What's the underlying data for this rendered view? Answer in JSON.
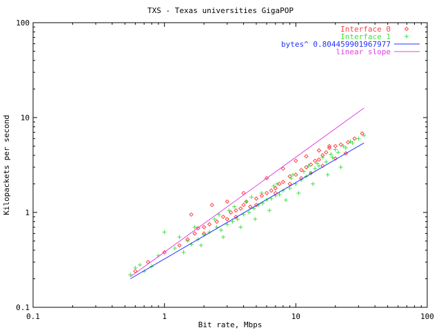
{
  "chart_data": {
    "type": "scatter",
    "title": "TXS - Texas universities GigaPOP",
    "xlabel": "Bit rate, Mbps",
    "ylabel": "Kilopackets per second",
    "x_scale": "log",
    "y_scale": "log",
    "xlim": [
      0.1,
      100
    ],
    "ylim": [
      0.1,
      100
    ],
    "x_ticks": [
      0.1,
      1,
      10,
      100
    ],
    "y_ticks": [
      0.1,
      1,
      10,
      100
    ],
    "x_tick_labels": [
      "0.1",
      "1",
      "10",
      "100"
    ],
    "y_tick_labels": [
      "0.1",
      "1",
      "10",
      "100"
    ],
    "legend_position": "top-right",
    "grid": false,
    "series": [
      {
        "name": "Interface 0",
        "kind": "points",
        "marker": "diamond",
        "color": "#ff4040",
        "points": [
          [
            0.6,
            0.24
          ],
          [
            0.75,
            0.3
          ],
          [
            1.0,
            0.38
          ],
          [
            1.3,
            0.45
          ],
          [
            1.5,
            0.52
          ],
          [
            1.7,
            0.6
          ],
          [
            1.8,
            0.68
          ],
          [
            2.0,
            0.7
          ],
          [
            2.2,
            0.75
          ],
          [
            2.5,
            0.8
          ],
          [
            2.8,
            0.9
          ],
          [
            3.0,
            0.85
          ],
          [
            3.2,
            1.0
          ],
          [
            3.5,
            1.05
          ],
          [
            3.8,
            1.1
          ],
          [
            4.0,
            1.2
          ],
          [
            4.2,
            1.3
          ],
          [
            4.5,
            1.15
          ],
          [
            5.0,
            1.4
          ],
          [
            5.5,
            1.5
          ],
          [
            6.0,
            1.6
          ],
          [
            6.5,
            1.7
          ],
          [
            7.0,
            1.8
          ],
          [
            7.5,
            2.0
          ],
          [
            8.0,
            2.1
          ],
          [
            9.0,
            2.4
          ],
          [
            10.0,
            2.5
          ],
          [
            11.0,
            2.8
          ],
          [
            12.0,
            3.0
          ],
          [
            13.0,
            3.2
          ],
          [
            14.0,
            3.5
          ],
          [
            15.0,
            3.6
          ],
          [
            16.0,
            4.0
          ],
          [
            17.0,
            4.3
          ],
          [
            18.0,
            4.8
          ],
          [
            20.0,
            5.0
          ],
          [
            22.0,
            5.2
          ],
          [
            25.0,
            5.5
          ],
          [
            28.0,
            6.0
          ],
          [
            32.0,
            6.8
          ],
          [
            1.6,
            0.95
          ],
          [
            2.3,
            1.2
          ],
          [
            3.0,
            1.3
          ],
          [
            4.0,
            1.6
          ],
          [
            6.0,
            2.3
          ],
          [
            8.0,
            2.9
          ],
          [
            10.0,
            3.5
          ],
          [
            12.0,
            3.9
          ],
          [
            15.0,
            4.5
          ],
          [
            18.0,
            5.0
          ],
          [
            2.0,
            0.6
          ],
          [
            3.5,
            0.9
          ],
          [
            5.0,
            1.2
          ],
          [
            7.0,
            1.6
          ],
          [
            9.0,
            2.0
          ],
          [
            11.0,
            2.3
          ],
          [
            13.0,
            2.6
          ],
          [
            16.0,
            3.1
          ],
          [
            20.0,
            3.7
          ],
          [
            24.0,
            4.2
          ]
        ]
      },
      {
        "name": "Interface 1",
        "kind": "points",
        "marker": "plus",
        "color": "#40e040",
        "points": [
          [
            0.55,
            0.22
          ],
          [
            0.6,
            0.26
          ],
          [
            0.65,
            0.28
          ],
          [
            0.7,
            0.24
          ],
          [
            0.8,
            0.27
          ],
          [
            0.9,
            0.35
          ],
          [
            1.0,
            0.62
          ],
          [
            1.2,
            0.42
          ],
          [
            1.3,
            0.55
          ],
          [
            1.4,
            0.38
          ],
          [
            1.5,
            0.5
          ],
          [
            1.6,
            0.46
          ],
          [
            1.8,
            0.52
          ],
          [
            2.0,
            0.58
          ],
          [
            2.2,
            0.62
          ],
          [
            2.5,
            0.7
          ],
          [
            2.7,
            0.65
          ],
          [
            3.0,
            0.75
          ],
          [
            3.3,
            0.8
          ],
          [
            3.6,
            0.85
          ],
          [
            4.0,
            0.95
          ],
          [
            4.4,
            1.0
          ],
          [
            4.8,
            1.1
          ],
          [
            5.2,
            1.2
          ],
          [
            5.6,
            1.25
          ],
          [
            6.0,
            1.35
          ],
          [
            6.5,
            1.4
          ],
          [
            7.0,
            1.5
          ],
          [
            7.5,
            1.55
          ],
          [
            8.0,
            1.7
          ],
          [
            9.0,
            1.8
          ],
          [
            10.0,
            2.0
          ],
          [
            11.0,
            2.2
          ],
          [
            12.0,
            2.4
          ],
          [
            13.0,
            2.6
          ],
          [
            14.0,
            2.9
          ],
          [
            15.0,
            3.1
          ],
          [
            17.0,
            3.4
          ],
          [
            19.0,
            3.8
          ],
          [
            21.0,
            4.3
          ],
          [
            24.0,
            4.8
          ],
          [
            27.0,
            5.4
          ],
          [
            30.0,
            6.0
          ],
          [
            33.0,
            6.5
          ],
          [
            1.7,
            0.7
          ],
          [
            2.4,
            0.85
          ],
          [
            3.1,
            1.05
          ],
          [
            4.2,
            1.3
          ],
          [
            5.5,
            1.6
          ],
          [
            7.2,
            2.0
          ],
          [
            9.5,
            2.5
          ],
          [
            12.5,
            3.1
          ],
          [
            16.0,
            3.8
          ],
          [
            20.0,
            4.6
          ],
          [
            1.9,
            0.45
          ],
          [
            2.8,
            0.55
          ],
          [
            3.8,
            0.7
          ],
          [
            4.9,
            0.85
          ],
          [
            6.3,
            1.05
          ],
          [
            8.4,
            1.35
          ],
          [
            10.5,
            1.6
          ],
          [
            13.5,
            2.0
          ],
          [
            17.5,
            2.5
          ],
          [
            22.0,
            3.0
          ],
          [
            2.6,
            0.95
          ],
          [
            3.4,
            1.15
          ],
          [
            4.6,
            1.45
          ],
          [
            6.8,
            1.9
          ],
          [
            9.2,
            2.3
          ],
          [
            11.5,
            2.7
          ],
          [
            14.5,
            3.3
          ],
          [
            18.5,
            4.1
          ],
          [
            23.0,
            5.0
          ],
          [
            26.0,
            5.6
          ]
        ]
      },
      {
        "name": "bytes^ 0.804459901967977",
        "kind": "line",
        "color": "#2030ff",
        "points": [
          [
            0.55,
            0.2
          ],
          [
            33.0,
            5.4
          ]
        ]
      },
      {
        "name": "linear slope",
        "kind": "line",
        "color": "#e040e0",
        "points": [
          [
            0.55,
            0.21
          ],
          [
            33.0,
            12.6
          ]
        ]
      }
    ]
  }
}
